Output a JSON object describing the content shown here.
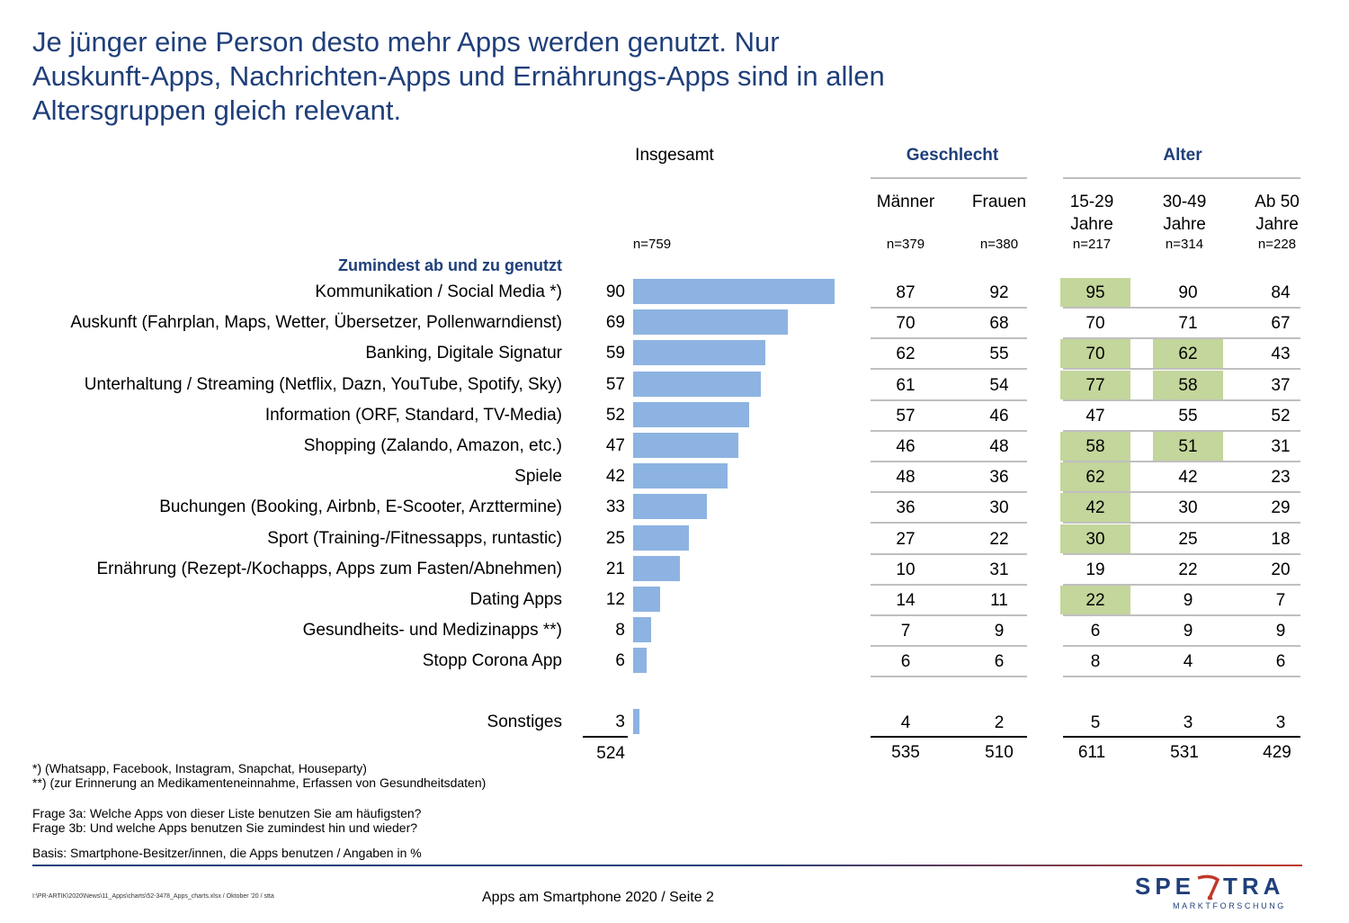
{
  "title": "Je jünger eine Person desto mehr Apps werden genutzt. Nur Auskunft-Apps, Nachrichten-Apps und Ernährungs-Apps sind in allen Altersgruppen gleich relevant.",
  "headers": {
    "total": "Insgesamt",
    "gender": "Geschlecht",
    "age": "Alter",
    "men": "Männer",
    "women": "Frauen",
    "age1": "15-29\nJahre",
    "age2": "30-49\nJahre",
    "age3": "Ab 50\nJahre",
    "n_total": "n=759",
    "n_men": "n=379",
    "n_women": "n=380",
    "n_age1": "n=217",
    "n_age2": "n=314",
    "n_age3": "n=228"
  },
  "section_label": "Zumindest ab und zu genutzt",
  "chart_data": {
    "type": "bar",
    "orientation": "horizontal",
    "bar_color": "#8db3e2",
    "highlight_color": "#c3d69b",
    "categories": [
      "Kommunikation / Social Media *)",
      "Auskunft (Fahrplan, Maps, Wetter, Übersetzer, Pollenwarndienst)",
      "Banking, Digitale Signatur",
      "Unterhaltung / Streaming (Netflix, Dazn, YouTube, Spotify, Sky)",
      "Information (ORF, Standard, TV-Media)",
      "Shopping (Zalando, Amazon, etc.)",
      "Spiele",
      "Buchungen (Booking, Airbnb, E-Scooter, Arzttermine)",
      "Sport (Training-/Fitnessapps, runtastic)",
      "Ernährung (Rezept-/Kochapps, Apps zum Fasten/Abnehmen)",
      "Dating Apps",
      "Gesundheits- und Medizinapps **)",
      "Stopp Corona App",
      "Sonstiges"
    ],
    "values": [
      90,
      69,
      59,
      57,
      52,
      47,
      42,
      33,
      25,
      21,
      12,
      8,
      6,
      3
    ],
    "xlim": [
      0,
      100
    ],
    "table": {
      "columns": [
        "Männer",
        "Frauen",
        "15-29 Jahre",
        "30-49 Jahre",
        "Ab 50 Jahre"
      ],
      "rows": [
        [
          87,
          92,
          95,
          90,
          84
        ],
        [
          70,
          68,
          70,
          71,
          67
        ],
        [
          62,
          55,
          70,
          62,
          43
        ],
        [
          61,
          54,
          77,
          58,
          37
        ],
        [
          57,
          46,
          47,
          55,
          52
        ],
        [
          46,
          48,
          58,
          51,
          31
        ],
        [
          48,
          36,
          62,
          42,
          23
        ],
        [
          36,
          30,
          42,
          30,
          29
        ],
        [
          27,
          22,
          30,
          25,
          18
        ],
        [
          10,
          31,
          19,
          22,
          20
        ],
        [
          14,
          11,
          22,
          9,
          7
        ],
        [
          7,
          9,
          6,
          9,
          9
        ],
        [
          6,
          6,
          8,
          4,
          6
        ],
        [
          4,
          2,
          5,
          3,
          3
        ]
      ],
      "highlighted": [
        [
          0,
          2
        ],
        [
          2,
          2
        ],
        [
          2,
          3
        ],
        [
          3,
          2
        ],
        [
          3,
          3
        ],
        [
          5,
          2
        ],
        [
          5,
          3
        ],
        [
          6,
          2
        ],
        [
          7,
          2
        ],
        [
          8,
          2
        ],
        [
          10,
          2
        ]
      ]
    },
    "totals": {
      "total": 524,
      "columns": [
        535,
        510,
        611,
        531,
        429
      ]
    }
  },
  "footnotes": {
    "f1": "*) (Whatsapp, Facebook, Instagram, Snapchat, Houseparty)",
    "f2": "**) (zur Erinnerung an Medikamenteneinnahme, Erfassen von Gesundheitsdaten)",
    "q1": "Frage 3a: Welche Apps von dieser Liste benutzen Sie am häufigsten?",
    "q2": "Frage 3b: Und welche Apps benutzen Sie zumindest hin und wieder?",
    "basis": "Basis: Smartphone-Besitzer/innen, die Apps benutzen / Angaben in %"
  },
  "footer": {
    "path": "I:\\PR-ARTIK\\2020\\News\\11_Apps\\charts\\52-3478_Apps_charts.xlsx / Oktober '20 / stta",
    "page": "Apps am Smartphone 2020  /  Seite  2",
    "logo_brand": "SPECTRA",
    "logo_sub": "MARKTFORSCHUNG"
  }
}
